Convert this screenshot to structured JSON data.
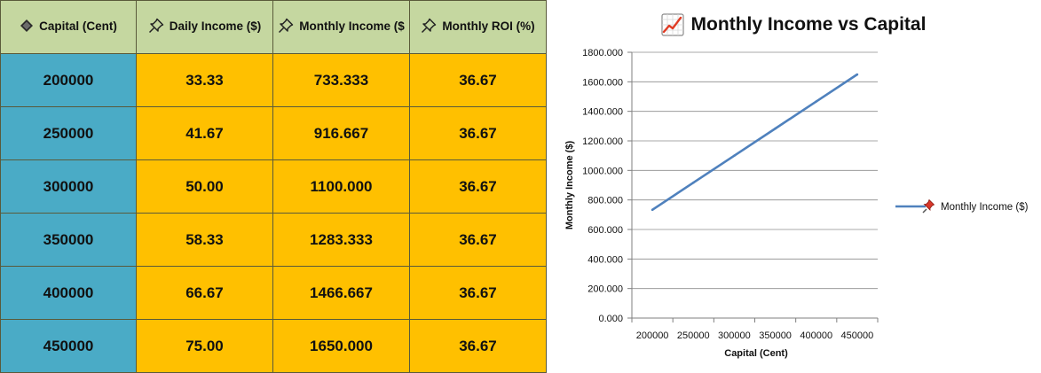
{
  "table": {
    "headers": [
      {
        "label": "Capital (Cent)",
        "icon": "diamond-icon"
      },
      {
        "label": "Daily Income ($)",
        "icon": "pushpin-icon"
      },
      {
        "label": "Monthly Income ($",
        "icon": "pushpin-icon"
      },
      {
        "label": "Monthly ROI (%)",
        "icon": "pushpin-icon"
      }
    ],
    "rows": [
      {
        "capital": "200000",
        "daily": "33.33",
        "monthly": "733.333",
        "roi": "36.67"
      },
      {
        "capital": "250000",
        "daily": "41.67",
        "monthly": "916.667",
        "roi": "36.67"
      },
      {
        "capital": "300000",
        "daily": "50.00",
        "monthly": "1100.000",
        "roi": "36.67"
      },
      {
        "capital": "350000",
        "daily": "58.33",
        "monthly": "1283.333",
        "roi": "36.67"
      },
      {
        "capital": "400000",
        "daily": "66.67",
        "monthly": "1466.667",
        "roi": "36.67"
      },
      {
        "capital": "450000",
        "daily": "75.00",
        "monthly": "1650.000",
        "roi": "36.67"
      }
    ]
  },
  "colors": {
    "header_bg": "#c5d7a0",
    "capital_bg": "#4aabc6",
    "value_bg": "#ffc000",
    "line": "#4f81bd"
  },
  "chart_data": {
    "type": "line",
    "title": "Monthly Income vs Capital",
    "title_icon": "chart-increasing-icon",
    "xlabel": "Capital (Cent)",
    "ylabel": "Monthly Income ($)",
    "x": [
      200000,
      250000,
      300000,
      350000,
      400000,
      450000
    ],
    "x_tick_labels": [
      "200000",
      "250000",
      "300000",
      "350000",
      "400000",
      "450000"
    ],
    "y_ticks": [
      "0.000",
      "200.000",
      "400.000",
      "600.000",
      "800.000",
      "1000.000",
      "1200.000",
      "1400.000",
      "1600.000",
      "1800.000"
    ],
    "ylim": [
      0,
      1800
    ],
    "grid": true,
    "legend_position": "right",
    "series": [
      {
        "name": "Monthly Income ($)",
        "icon": "pushpin-icon",
        "values": [
          733.333,
          916.667,
          1100.0,
          1283.333,
          1466.667,
          1650.0
        ]
      }
    ]
  }
}
